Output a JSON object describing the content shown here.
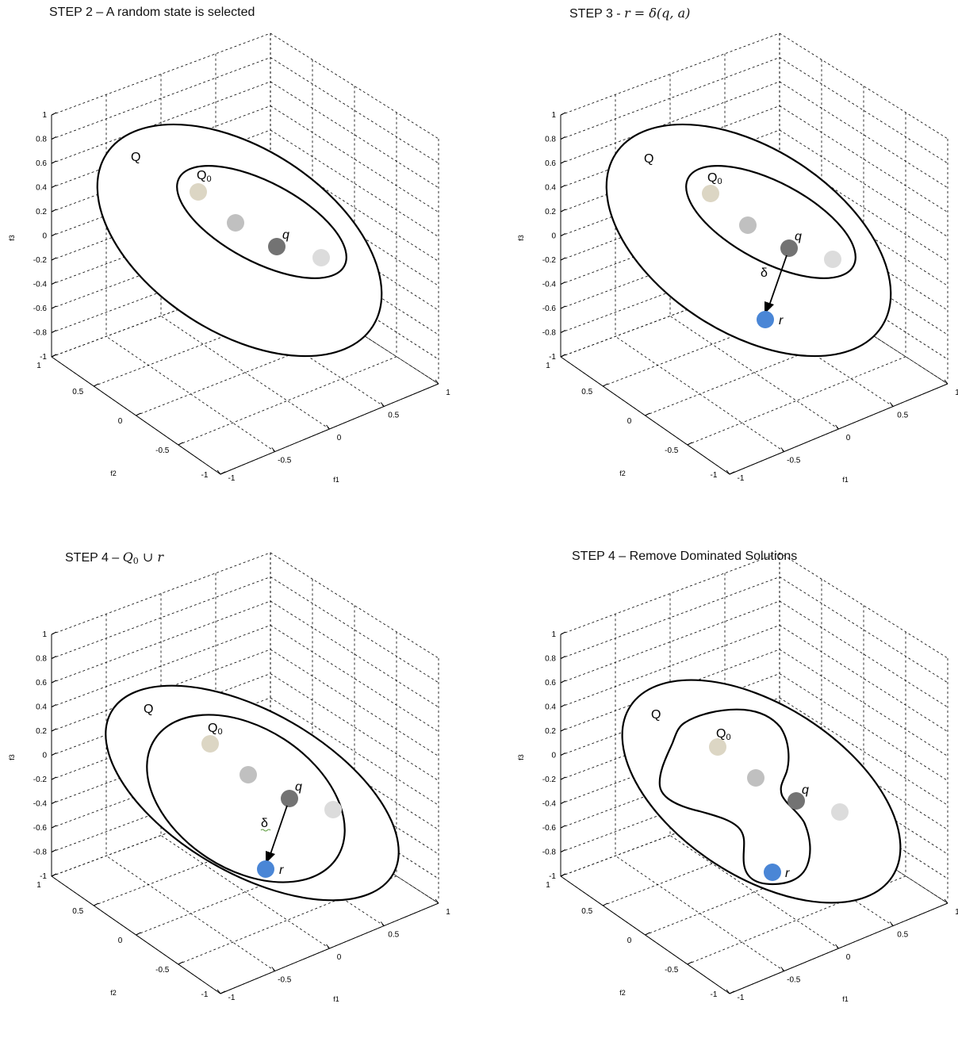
{
  "panels": [
    {
      "id": "p1",
      "title_text": "STEP 2 – A random state is selected",
      "title_math": "",
      "labels": {
        "Q": "Q",
        "Q0_main": "Q",
        "Q0_sub": "0",
        "q": "q"
      }
    },
    {
      "id": "p2",
      "title_text": "STEP 3 - ",
      "title_math": "r = δ(q, a)",
      "labels": {
        "Q": "Q",
        "Q0_main": "Q",
        "Q0_sub": "0",
        "q": "q",
        "r": "r",
        "delta": "δ"
      }
    },
    {
      "id": "p3",
      "title_text": "STEP 4 – ",
      "title_math_main": "Q",
      "title_math_sub": "0",
      "title_math_rest": " ∪ r",
      "labels": {
        "Q": "Q",
        "Q0_main": "Q",
        "Q0_sub": "0",
        "q": "q",
        "r": "r",
        "delta": "δ"
      }
    },
    {
      "id": "p4",
      "title_text": "STEP 4 – Remove Dominated Solutions",
      "title_math": "",
      "labels": {
        "Q": "Q",
        "Q0_main": "Q",
        "Q0_sub": "0",
        "q": "q",
        "r": "r"
      }
    }
  ],
  "axes": {
    "f3_label": "f3",
    "f2_label": "f2",
    "f1_label": "f1",
    "f3_ticks": [
      "1",
      "0.8",
      "0.6",
      "0.4",
      "0.2",
      "0",
      "-0.2",
      "-0.4",
      "-0.6",
      "-0.8",
      "-1"
    ],
    "f2_ticks": [
      "1",
      "0.5",
      "0",
      "-0.5",
      "-1"
    ],
    "f1_ticks": [
      "-1",
      "-0.5",
      "0",
      "0.5",
      "1"
    ]
  },
  "colors": {
    "point_beige": "#dcd6c4",
    "point_light_gray": "#c0c0c0",
    "point_dark_gray": "#737373",
    "point_pale_gray": "#dcdcdc",
    "point_blue": "#4a86d6",
    "stroke": "#000000"
  }
}
